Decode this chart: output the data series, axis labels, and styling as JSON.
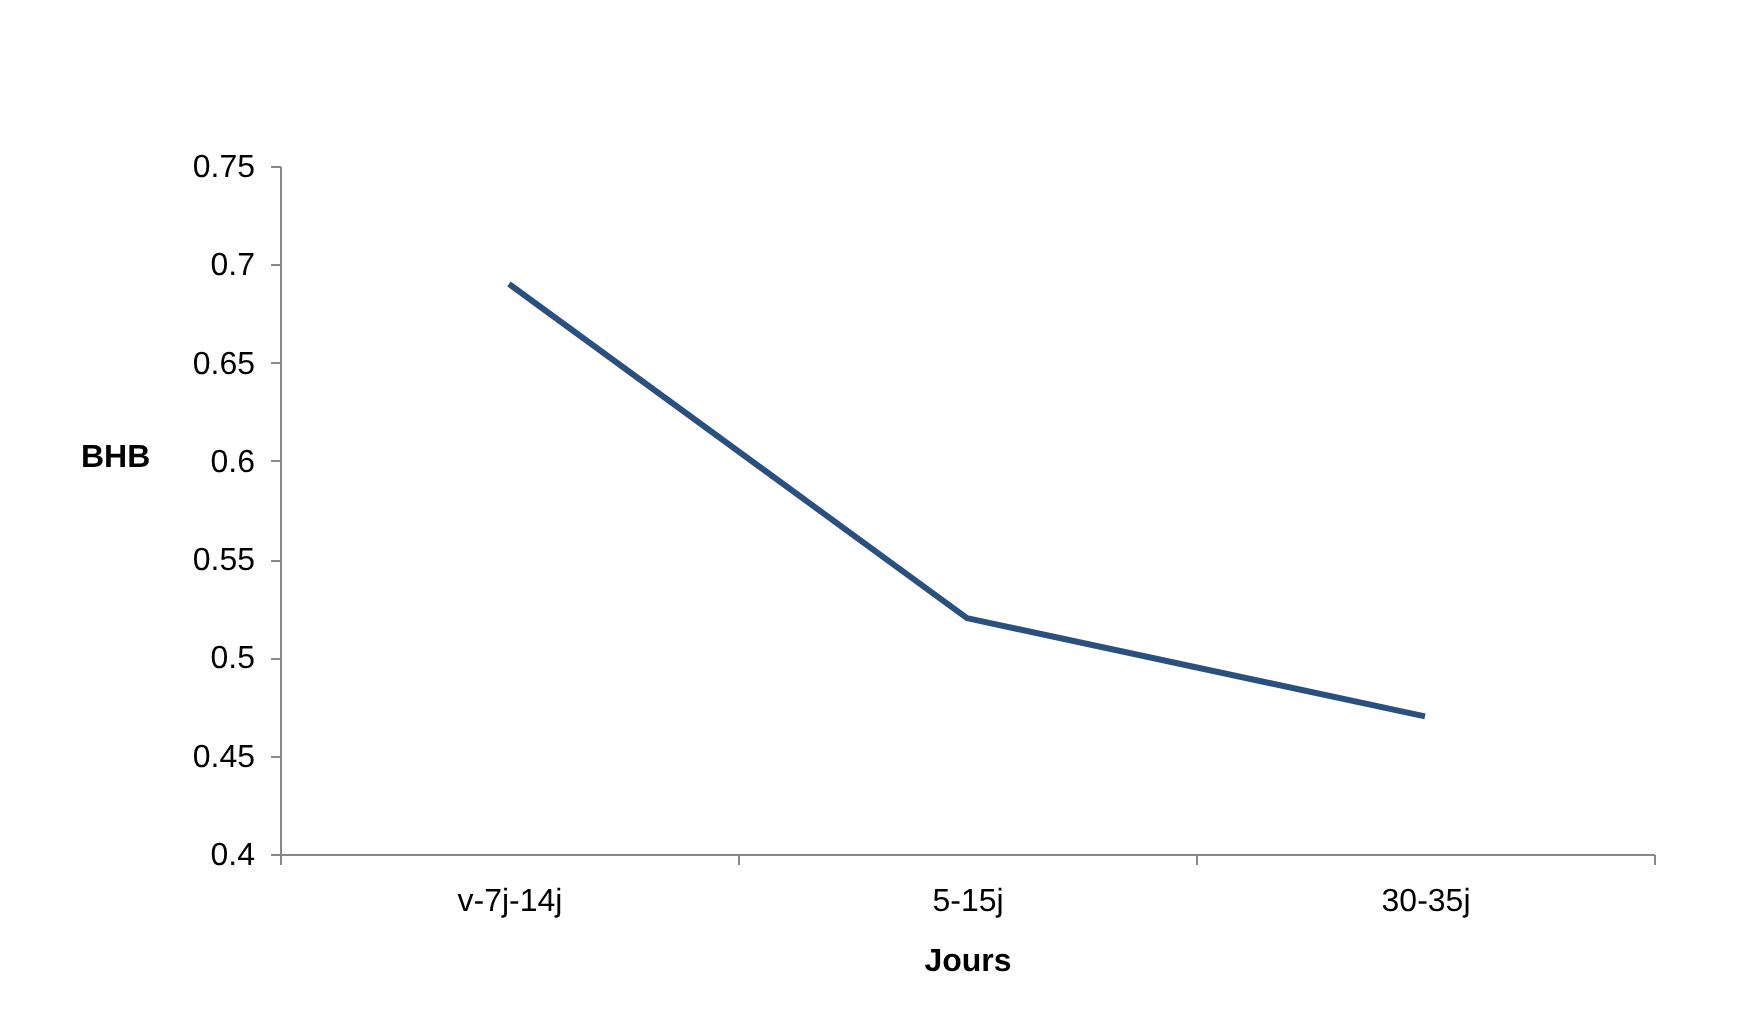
{
  "chart_data": {
    "type": "line",
    "xlabel": "Jours",
    "ylabel": "BHB",
    "categories": [
      "v-7j-14j",
      "5-15j",
      "30-35j"
    ],
    "series": [
      {
        "color": "#2a5080",
        "values": [
          0.69,
          0.52,
          0.47
        ]
      }
    ],
    "ylim": [
      0.4,
      0.75
    ],
    "yticks": [
      0.4,
      0.45,
      0.5,
      0.55,
      0.6,
      0.65,
      0.7,
      0.75
    ],
    "grid": false,
    "legend": false,
    "marker": "none",
    "line_style": "solid"
  }
}
